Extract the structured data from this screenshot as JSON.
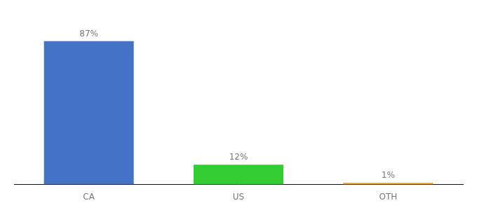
{
  "chart_data": {
    "type": "bar",
    "categories": [
      "CA",
      "US",
      "OTH"
    ],
    "values": [
      87,
      12,
      1
    ],
    "value_labels": [
      "87%",
      "12%",
      "1%"
    ],
    "colors": [
      "#4472c4",
      "#33cc33",
      "#f0a500"
    ],
    "ylim": [
      0,
      100
    ],
    "grid": false,
    "data_labels": true,
    "tick_labels": "x"
  }
}
